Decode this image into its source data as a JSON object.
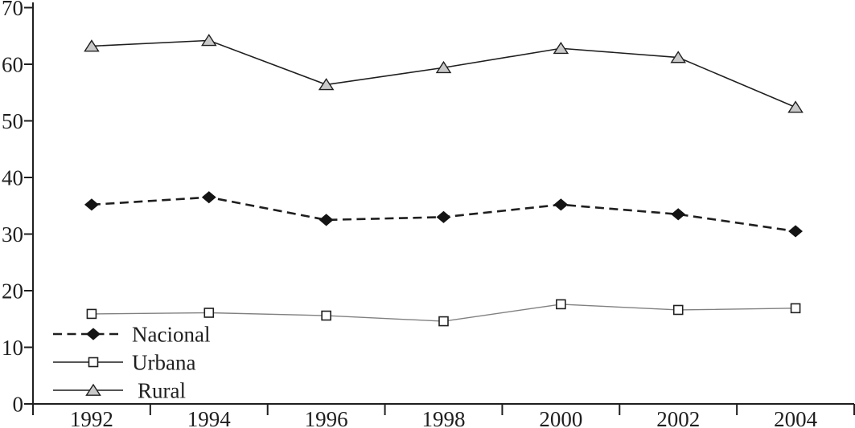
{
  "chart_data": {
    "type": "line",
    "title": "",
    "xlabel": "",
    "ylabel": "",
    "categories": [
      "1992",
      "1994",
      "1996",
      "1998",
      "2000",
      "2002",
      "2004"
    ],
    "series": [
      {
        "name": "Nacional",
        "values": [
          35.2,
          36.5,
          32.5,
          33.0,
          35.2,
          33.5,
          30.5
        ],
        "line_style": "dashed",
        "line_color": "#1f1f1f",
        "line_width": 2.6,
        "marker": "diamond",
        "marker_fill": "#141414",
        "marker_stroke": "#141414"
      },
      {
        "name": "Urbana",
        "values": [
          15.9,
          16.1,
          15.6,
          14.6,
          17.6,
          16.6,
          16.9
        ],
        "line_style": "solid",
        "line_color": "#808080",
        "line_width": 1.4,
        "marker": "square",
        "marker_fill": "#ffffff",
        "marker_stroke": "#1f1f1f"
      },
      {
        "name": "Rural",
        "values": [
          63.2,
          64.2,
          56.4,
          59.4,
          62.8,
          61.2,
          52.4
        ],
        "line_style": "solid",
        "line_color": "#1f1f1f",
        "line_width": 1.6,
        "marker": "triangle",
        "marker_fill": "#c9c9c9",
        "marker_stroke": "#1f1f1f"
      }
    ],
    "ylim": [
      0,
      70
    ],
    "yticks": [
      0,
      10,
      20,
      30,
      40,
      50,
      60,
      70
    ],
    "grid": false,
    "legend_position": "inside-bottom-left",
    "legend_order": [
      "Nacional",
      "Urbana",
      "Rural"
    ],
    "axis_color": "#1f1f1f",
    "text_color": "#1f1f1f",
    "background": "#ffffff"
  }
}
